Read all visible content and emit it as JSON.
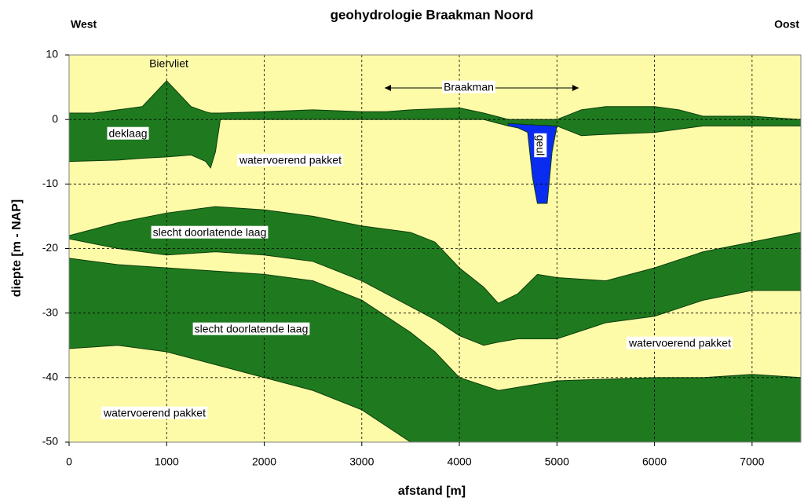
{
  "chart_data": {
    "type": "cross-section",
    "title": "geohydrologie Braakman Noord",
    "x_label": "afstand [m]",
    "y_label": "diepte [m - NAP]",
    "xlim": [
      0,
      7500
    ],
    "xticks": [
      0,
      1000,
      2000,
      3000,
      4000,
      5000,
      6000,
      7000
    ],
    "ylim": [
      -50,
      10
    ],
    "yticks": [
      -50,
      -40,
      -30,
      -20,
      -10,
      0,
      10
    ],
    "grid": true,
    "background_color": "#fefba8",
    "annotations": [
      "West",
      "Oost",
      "Biervliet",
      "Braakman",
      "deklaag",
      "watervoerend pakket",
      "geul",
      "slecht doorlatende laag",
      "slecht doorlatende laag",
      "watervoerend pakket",
      "watervoerend pakket"
    ],
    "series": [
      {
        "color": "#1f7a1f",
        "x": [
          0,
          250,
          500,
          750,
          1000,
          1250,
          1400,
          1450,
          1500,
          1550,
          2000,
          2500,
          3000,
          3250,
          3500,
          4000,
          4250,
          4500,
          4750,
          5000,
          5250,
          5500,
          6000,
          6250,
          6500,
          7000,
          7500
        ],
        "values": [
          1,
          1,
          1.5,
          2,
          6,
          2,
          1.2,
          1,
          1,
          1,
          1.2,
          1.5,
          1.2,
          1.2,
          1.5,
          1.8,
          1,
          0,
          0,
          0,
          1.5,
          2,
          2,
          1.5,
          0.5,
          0.5,
          0
        ],
        "base": [
          -6.5,
          -6.4,
          -6.3,
          -6,
          -5.8,
          -5.5,
          -6.5,
          -7.5,
          -5,
          0,
          0,
          0,
          0,
          0,
          0,
          0,
          0,
          -1,
          -1,
          -1,
          -2.5,
          -2.3,
          -2,
          -1.5,
          -1,
          -1,
          -1
        ]
      },
      {
        "color": "#1f7a1f",
        "x": [
          0,
          500,
          1000,
          1500,
          2000,
          2500,
          3000,
          3250,
          3500,
          3750,
          4000,
          4250,
          4400,
          4600,
          4800,
          5000,
          5500,
          6000,
          6500,
          7000,
          7500
        ],
        "values": [
          -18,
          -16,
          -14.5,
          -13.5,
          -14,
          -15,
          -16.5,
          -17,
          -17.5,
          -19,
          -23,
          -26,
          -28.5,
          -27,
          -24,
          -24.5,
          -25,
          -23,
          -20.5,
          -19,
          -17.5
        ],
        "base": [
          -18.5,
          -20,
          -21,
          -20.5,
          -21,
          -22,
          -25,
          -27,
          -29,
          -31,
          -33.5,
          -35,
          -34.5,
          -34,
          -34,
          -34,
          -31.5,
          -30.5,
          -28,
          -26.5,
          -26.5
        ]
      },
      {
        "color": "#1f7a1f",
        "x": [
          0,
          500,
          1000,
          1500,
          2000,
          2500,
          3000,
          3500,
          3750,
          4000,
          4400,
          5000,
          6000,
          6500,
          7000,
          7500
        ],
        "values": [
          -21.5,
          -22.5,
          -23,
          -23.5,
          -24,
          -25,
          -28,
          -33,
          -36,
          -40,
          -42,
          -40.5,
          -40,
          -40,
          -39.5,
          -40
        ],
        "base": [
          -35.5,
          -35,
          -36,
          -38,
          -40,
          -42,
          -45,
          -50,
          -50,
          -50,
          -50,
          -50,
          -50,
          -50,
          -50,
          -50
        ]
      },
      {
        "color": "#0a2cf0",
        "x": [
          4500,
          4600,
          4700,
          4750,
          4800,
          4900,
          4950,
          5000
        ],
        "values": [
          -0.6,
          -0.7,
          -0.8,
          -0.8,
          -0.9,
          -0.9,
          -1,
          -1
        ],
        "base": [
          -1,
          -1.3,
          -2,
          -9,
          -13,
          -13,
          -5,
          -1
        ]
      }
    ]
  }
}
